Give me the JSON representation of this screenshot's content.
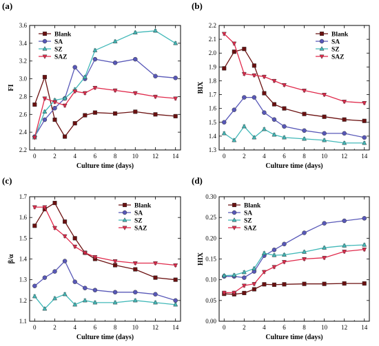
{
  "chart_data": [
    {
      "panel_label": "(a)",
      "type": "line",
      "xlabel": "Culture time (days)",
      "ylabel": "FI",
      "xlim": [
        -0.5,
        14.5
      ],
      "ylim": [
        2.2,
        3.6
      ],
      "xticks": [
        "0",
        "2",
        "4",
        "6",
        "8",
        "10",
        "12",
        "14"
      ],
      "yticks": [
        "2.2",
        "2.4",
        "2.6",
        "2.8",
        "3.0",
        "3.2",
        "3.4",
        "3.6"
      ],
      "legend_position": "top-left",
      "x": [
        0,
        1,
        2,
        3,
        4,
        5,
        6,
        8,
        10,
        12,
        14
      ],
      "series": [
        {
          "name": "Blank",
          "color": "#6b1010",
          "marker": "square",
          "values": [
            2.71,
            3.02,
            2.54,
            2.35,
            2.5,
            2.59,
            2.62,
            2.61,
            2.63,
            2.6,
            2.58
          ]
        },
        {
          "name": "SA",
          "color": "#5858b8",
          "marker": "circle",
          "values": [
            2.35,
            2.54,
            2.67,
            2.78,
            3.13,
            3.0,
            3.22,
            3.18,
            3.22,
            3.03,
            3.01
          ]
        },
        {
          "name": "SZ",
          "color": "#40b8b8",
          "marker": "triangle-up",
          "values": [
            2.34,
            2.63,
            2.76,
            2.78,
            2.88,
            3.02,
            3.32,
            3.42,
            3.52,
            3.54,
            3.4
          ]
        },
        {
          "name": "SAZ",
          "color": "#e0284a",
          "marker": "triangle-down",
          "values": [
            2.34,
            2.78,
            2.74,
            2.7,
            2.86,
            2.84,
            2.9,
            2.87,
            2.84,
            2.8,
            2.78
          ]
        }
      ]
    },
    {
      "panel_label": "(b)",
      "type": "line",
      "xlabel": "Culture time (days)",
      "ylabel": "BIX",
      "xlim": [
        -0.5,
        14.5
      ],
      "ylim": [
        1.3,
        2.2
      ],
      "xticks": [
        "0",
        "2",
        "4",
        "6",
        "8",
        "10",
        "12",
        "14"
      ],
      "yticks": [
        "1.3",
        "1.4",
        "1.5",
        "1.6",
        "1.7",
        "1.8",
        "1.9",
        "2.0",
        "2.1",
        "2.2"
      ],
      "legend_position": "top-right",
      "x": [
        0,
        1,
        2,
        3,
        4,
        5,
        6,
        8,
        10,
        12,
        14
      ],
      "series": [
        {
          "name": "Blank",
          "color": "#6b1010",
          "marker": "square",
          "values": [
            1.89,
            2.01,
            2.03,
            1.91,
            1.71,
            1.63,
            1.6,
            1.56,
            1.54,
            1.52,
            1.51
          ]
        },
        {
          "name": "SA",
          "color": "#5858b8",
          "marker": "circle",
          "values": [
            1.5,
            1.59,
            1.68,
            1.68,
            1.57,
            1.52,
            1.47,
            1.44,
            1.42,
            1.42,
            1.39
          ]
        },
        {
          "name": "SZ",
          "color": "#40b8b8",
          "marker": "triangle-up",
          "values": [
            1.42,
            1.37,
            1.47,
            1.39,
            1.45,
            1.41,
            1.39,
            1.38,
            1.37,
            1.35,
            1.35
          ]
        },
        {
          "name": "SAZ",
          "color": "#e0284a",
          "marker": "triangle-down",
          "values": [
            2.14,
            2.07,
            1.85,
            1.84,
            1.83,
            1.8,
            1.77,
            1.73,
            1.7,
            1.65,
            1.64
          ]
        }
      ]
    },
    {
      "panel_label": "(c)",
      "type": "line",
      "xlabel": "Culture time (days)",
      "ylabel": "β/α",
      "xlim": [
        -0.5,
        14.5
      ],
      "ylim": [
        1.1,
        1.7
      ],
      "xticks": [
        "0",
        "2",
        "4",
        "6",
        "8",
        "10",
        "12",
        "14"
      ],
      "yticks": [
        "1.1",
        "1.2",
        "1.3",
        "1.4",
        "1.5",
        "1.6",
        "1.7"
      ],
      "legend_position": "right",
      "x": [
        0,
        1,
        2,
        3,
        4,
        5,
        6,
        8,
        10,
        12,
        14
      ],
      "series": [
        {
          "name": "Blank",
          "color": "#6b1010",
          "marker": "square",
          "values": [
            1.56,
            1.64,
            1.67,
            1.58,
            1.5,
            1.43,
            1.4,
            1.37,
            1.35,
            1.31,
            1.3
          ]
        },
        {
          "name": "SA",
          "color": "#5858b8",
          "marker": "circle",
          "values": [
            1.27,
            1.31,
            1.34,
            1.39,
            1.29,
            1.26,
            1.25,
            1.24,
            1.24,
            1.23,
            1.2
          ]
        },
        {
          "name": "SZ",
          "color": "#40b8b8",
          "marker": "triangle-up",
          "values": [
            1.22,
            1.16,
            1.21,
            1.23,
            1.18,
            1.2,
            1.19,
            1.19,
            1.2,
            1.19,
            1.18
          ]
        },
        {
          "name": "SAZ",
          "color": "#e0284a",
          "marker": "triangle-down",
          "values": [
            1.65,
            1.65,
            1.55,
            1.51,
            1.46,
            1.43,
            1.41,
            1.39,
            1.38,
            1.38,
            1.37
          ]
        }
      ]
    },
    {
      "panel_label": "(d)",
      "type": "line",
      "xlabel": "Culture time (days)",
      "ylabel": "HIX",
      "xlim": [
        -0.5,
        14.5
      ],
      "ylim": [
        0.0,
        0.3
      ],
      "xticks": [
        "0",
        "2",
        "4",
        "6",
        "8",
        "10",
        "12",
        "14"
      ],
      "yticks": [
        "0.00",
        "0.05",
        "0.10",
        "0.15",
        "0.20",
        "0.25",
        "0.30"
      ],
      "legend_position": "top-left",
      "x": [
        0,
        1,
        2,
        3,
        4,
        5,
        6,
        8,
        10,
        12,
        14
      ],
      "series": [
        {
          "name": "Blank",
          "color": "#6b1010",
          "marker": "square",
          "values": [
            0.066,
            0.065,
            0.068,
            0.077,
            0.089,
            0.088,
            0.089,
            0.09,
            0.09,
            0.091,
            0.091
          ]
        },
        {
          "name": "SA",
          "color": "#5858b8",
          "marker": "circle",
          "values": [
            0.108,
            0.108,
            0.105,
            0.12,
            0.158,
            0.172,
            0.186,
            0.213,
            0.236,
            0.242,
            0.248
          ]
        },
        {
          "name": "SZ",
          "color": "#40b8b8",
          "marker": "triangle-up",
          "values": [
            0.11,
            0.111,
            0.118,
            0.127,
            0.164,
            0.159,
            0.16,
            0.167,
            0.177,
            0.182,
            0.184
          ]
        },
        {
          "name": "SAZ",
          "color": "#e0284a",
          "marker": "triangle-down",
          "values": [
            0.069,
            0.069,
            0.086,
            0.09,
            0.119,
            0.131,
            0.143,
            0.15,
            0.153,
            0.168,
            0.173
          ]
        }
      ]
    }
  ]
}
